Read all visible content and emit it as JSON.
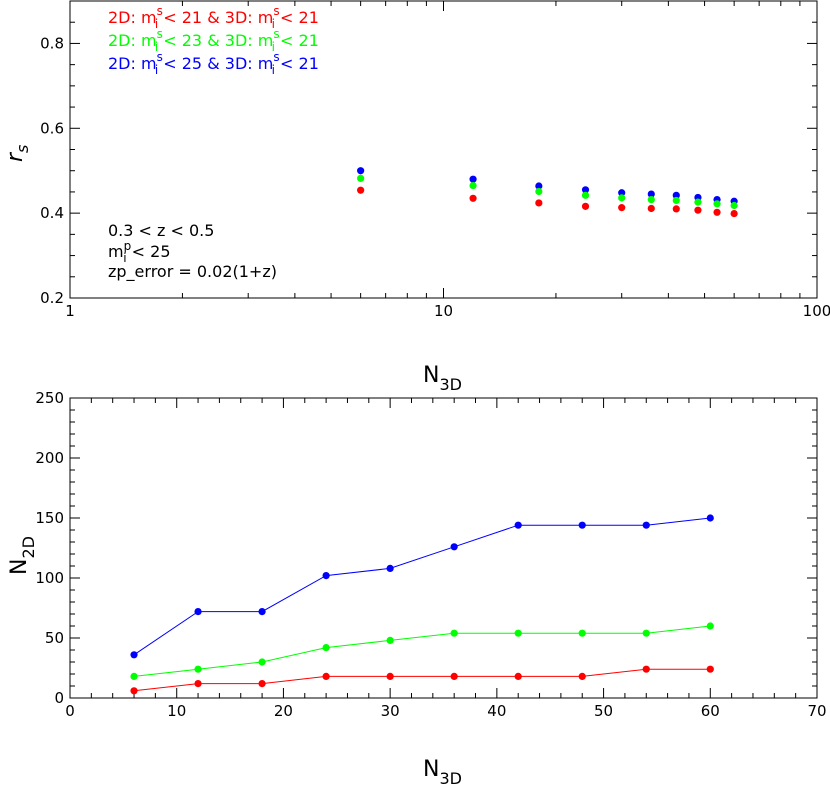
{
  "colors": {
    "red": "#ff0000",
    "green": "#00ff00",
    "blue": "#0000ff",
    "axis": "#000000"
  },
  "chart_data": [
    {
      "type": "scatter",
      "xscale": "log",
      "xlim": [
        1,
        100
      ],
      "ylim": [
        0.2,
        0.9
      ],
      "xticks": [
        1,
        10,
        100
      ],
      "xtick_labels": [
        "1",
        "10",
        "100"
      ],
      "yticks": [
        0.2,
        0.4,
        0.6,
        0.8
      ],
      "ytick_labels": [
        "0.2",
        "0.4",
        "0.6",
        "0.8"
      ],
      "ylabel": "r",
      "ylabel_sub": "s",
      "xlabel": "N",
      "xlabel_sub": "3D",
      "legend_location": "top-left",
      "legend": [
        {
          "color": "red",
          "l1": "2D: m",
          "l1_sup": "s",
          "l1_sub": "i",
          "l2": " < 21 & 3D: m",
          "l2_sup": "s",
          "l2_sub": "i",
          "l3": " < 21"
        },
        {
          "color": "green",
          "l1": "2D: m",
          "l1_sup": "s",
          "l1_sub": "i",
          "l2": " < 23 & 3D: m",
          "l2_sup": "s",
          "l2_sub": "i",
          "l3": " < 21"
        },
        {
          "color": "blue",
          "l1": "2D: m",
          "l1_sup": "s",
          "l1_sub": "i",
          "l2": " < 25 & 3D: m",
          "l2_sup": "s",
          "l2_sub": "i",
          "l3": " < 21"
        }
      ],
      "notes": {
        "line1": "0.3 < z < 0.5",
        "line2_base": "m",
        "line2_sup": "p",
        "line2_sub": "i",
        "line2_rest": " < 25",
        "line3": "zp_error = 0.02(1+z)"
      },
      "x": [
        6,
        12,
        18,
        24,
        30,
        36,
        42,
        48,
        54,
        60
      ],
      "series": [
        {
          "color": "blue",
          "values": [
            0.5,
            0.48,
            0.464,
            0.455,
            0.448,
            0.445,
            0.442,
            0.437,
            0.432,
            0.428
          ]
        },
        {
          "color": "green",
          "values": [
            0.482,
            0.465,
            0.451,
            0.442,
            0.436,
            0.432,
            0.43,
            0.426,
            0.422,
            0.418
          ]
        },
        {
          "color": "red",
          "values": [
            0.454,
            0.435,
            0.424,
            0.416,
            0.413,
            0.411,
            0.41,
            0.407,
            0.402,
            0.399
          ]
        }
      ]
    },
    {
      "type": "line",
      "xlim": [
        0,
        70
      ],
      "ylim": [
        0,
        250
      ],
      "xticks": [
        0,
        10,
        20,
        30,
        40,
        50,
        60,
        70
      ],
      "xtick_labels": [
        "0",
        "10",
        "20",
        "30",
        "40",
        "50",
        "60",
        "70"
      ],
      "yticks": [
        0,
        50,
        100,
        150,
        200,
        250
      ],
      "ytick_labels": [
        "0",
        "50",
        "100",
        "150",
        "200",
        "250"
      ],
      "ylabel": "N",
      "ylabel_sub": "2D",
      "xlabel": "N",
      "xlabel_sub": "3D",
      "x": [
        6,
        12,
        18,
        24,
        30,
        36,
        42,
        48,
        54,
        60
      ],
      "series": [
        {
          "color": "blue",
          "values": [
            36,
            72,
            72,
            102,
            108,
            126,
            144,
            144,
            144,
            150
          ]
        },
        {
          "color": "green",
          "values": [
            18,
            24,
            30,
            42,
            48,
            54,
            54,
            54,
            54,
            60
          ]
        },
        {
          "color": "red",
          "values": [
            6,
            12,
            12,
            18,
            18,
            18,
            18,
            18,
            24,
            24
          ]
        }
      ]
    }
  ]
}
